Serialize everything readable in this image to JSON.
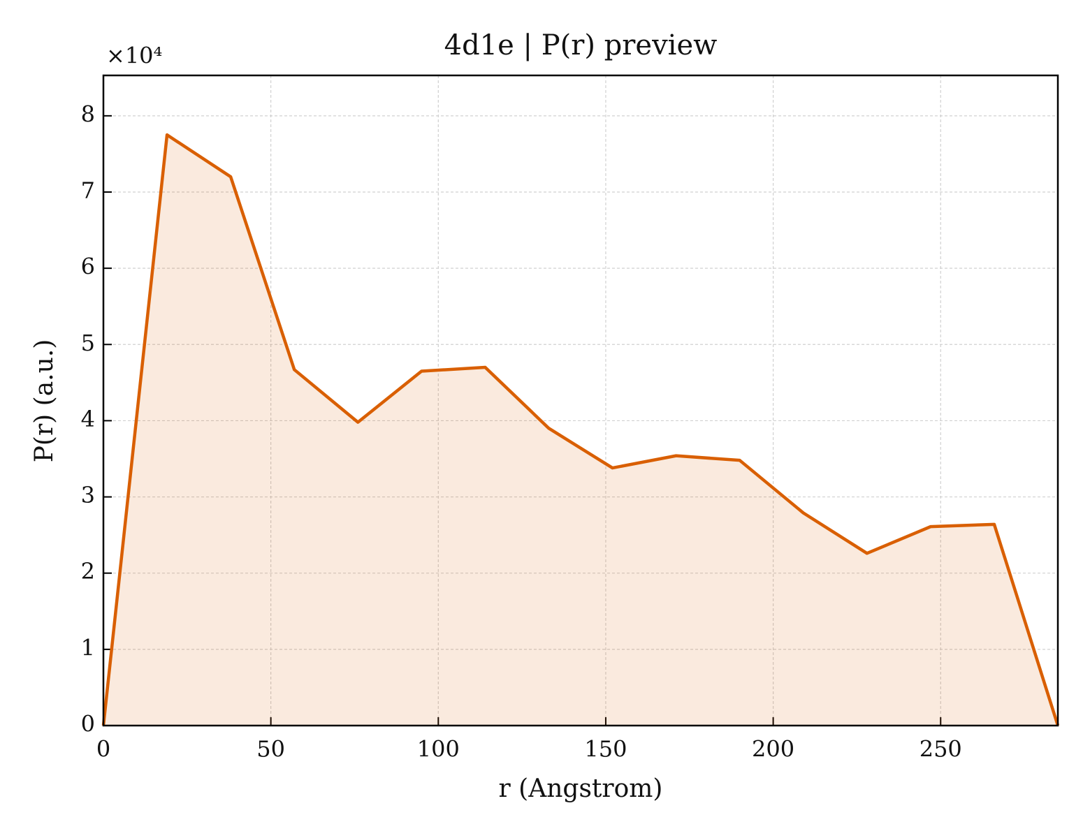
{
  "chart_data": {
    "type": "line",
    "title": "4d1e | P(r) preview",
    "x_label": "r (Angstrom)",
    "y_label": "P(r) (a.u.)",
    "y_multiplier": "×10⁴",
    "x": [
      0,
      19,
      38,
      57,
      76,
      95,
      114,
      133,
      152,
      171,
      190,
      209,
      228,
      247,
      266,
      285
    ],
    "series": [
      {
        "name": "P(r)",
        "color": "#d95f02",
        "values": [
          0,
          7.75,
          7.2,
          4.67,
          3.98,
          4.65,
          4.7,
          3.9,
          3.38,
          3.54,
          3.48,
          2.79,
          2.26,
          2.61,
          2.64,
          0
        ]
      }
    ],
    "fill": true,
    "xlim": [
      0,
      285
    ],
    "ylim": [
      0,
      8.53
    ],
    "xticks": [
      0,
      50,
      100,
      150,
      200,
      250
    ],
    "yticks": [
      0,
      1,
      2,
      3,
      4,
      5,
      6,
      7,
      8
    ],
    "grid": true
  }
}
